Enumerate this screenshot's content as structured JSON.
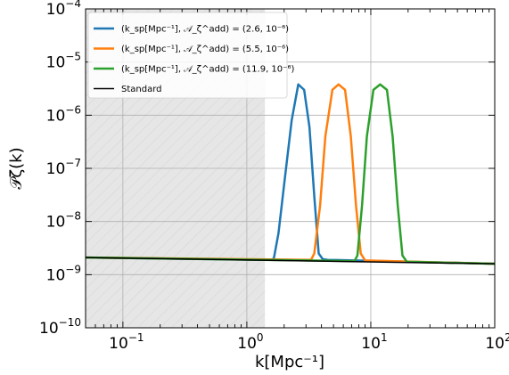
{
  "chart_data": {
    "type": "line",
    "xscale": "log",
    "yscale": "log",
    "xlim": [
      0.05,
      100
    ],
    "ylim": [
      1e-10,
      0.0001
    ],
    "xlabel": "k[Mpc⁻¹]",
    "ylabel": "𝒫ζ(k)",
    "grid": true,
    "legend_position": "top-left",
    "x_ticks": [
      {
        "value": 0.1,
        "base": "10",
        "exp": "−1"
      },
      {
        "value": 1,
        "base": "10",
        "exp": "0"
      },
      {
        "value": 10,
        "base": "10",
        "exp": "1"
      },
      {
        "value": 100,
        "base": "10",
        "exp": "2"
      }
    ],
    "y_ticks": [
      {
        "value": 1e-10,
        "base": "10",
        "exp": "−10"
      },
      {
        "value": 1e-09,
        "base": "10",
        "exp": "−9"
      },
      {
        "value": 1e-08,
        "base": "10",
        "exp": "−8"
      },
      {
        "value": 1e-07,
        "base": "10",
        "exp": "−7"
      },
      {
        "value": 1e-06,
        "base": "10",
        "exp": "−6"
      },
      {
        "value": 1e-05,
        "base": "10",
        "exp": "−5"
      },
      {
        "value": 0.0001,
        "base": "10",
        "exp": "−4"
      }
    ],
    "shaded_region": {
      "x": [
        0.05,
        1.4
      ],
      "color": "#e6e6e6",
      "hatch": true
    },
    "series": [
      {
        "name": "(k_sp[Mpc⁻¹], 𝒜_ζ^add) = (2.6, 10⁻⁶)",
        "color": "#1f77b4",
        "x": [
          0.05,
          1.55,
          1.65,
          1.8,
          2.0,
          2.3,
          2.6,
          2.9,
          3.2,
          3.5,
          3.8,
          4.1,
          4.5,
          100
        ],
        "y": [
          2.1e-09,
          1.9e-09,
          2e-09,
          6e-09,
          5e-08,
          8e-07,
          3.8e-06,
          3e-06,
          6e-07,
          3e-08,
          2.5e-09,
          1.95e-09,
          1.9e-09,
          1.6e-09
        ]
      },
      {
        "name": "(k_sp[Mpc⁻¹], 𝒜_ζ^add) = (5.5, 10⁻⁶)",
        "color": "#ff7f0e",
        "x": [
          0.05,
          3.3,
          3.5,
          3.9,
          4.3,
          4.9,
          5.5,
          6.2,
          6.9,
          7.6,
          8.3,
          9.0,
          100
        ],
        "y": [
          2.1e-09,
          1.9e-09,
          2.5e-09,
          2e-08,
          4e-07,
          3e-06,
          3.8e-06,
          3e-06,
          4e-07,
          2e-08,
          2.5e-09,
          1.85e-09,
          1.6e-09
        ]
      },
      {
        "name": "(k_sp[Mpc⁻¹], 𝒜_ζ^add) = (11.9, 10⁻⁶)",
        "color": "#2ca02c",
        "x": [
          0.05,
          7.4,
          7.8,
          8.5,
          9.3,
          10.5,
          11.9,
          13.5,
          15.0,
          16.5,
          18.0,
          19.5,
          100
        ],
        "y": [
          2.1e-09,
          1.8e-09,
          2.3e-09,
          2e-08,
          4e-07,
          3e-06,
          3.8e-06,
          3e-06,
          4e-07,
          2e-08,
          2.3e-09,
          1.75e-09,
          1.6e-09
        ]
      },
      {
        "name": "Standard",
        "color": "#000000",
        "x": [
          0.05,
          100
        ],
        "y": [
          2.1e-09,
          1.6e-09
        ]
      }
    ]
  }
}
